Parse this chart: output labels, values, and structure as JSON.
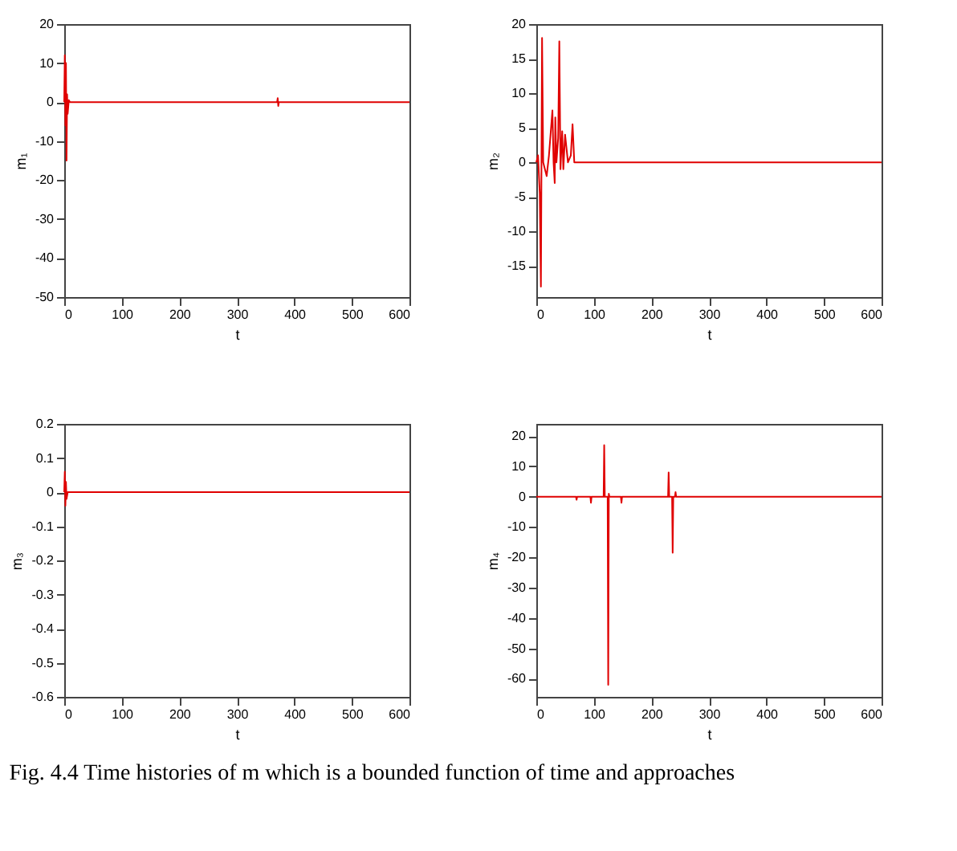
{
  "chart_data": [
    {
      "type": "line",
      "xlabel": "t",
      "ylabel": "m₁",
      "xlim": [
        0,
        600
      ],
      "xticks": [
        0,
        100,
        200,
        300,
        400,
        500,
        600
      ],
      "ylim": [
        -50,
        20
      ],
      "yticks": [
        -50,
        -40,
        -30,
        -20,
        -10,
        0,
        10,
        20
      ],
      "grid": false,
      "series": [
        {
          "color": "#e00000",
          "x": [
            0,
            1,
            2,
            3,
            4,
            5,
            6,
            8,
            10,
            370,
            371,
            372,
            373,
            600
          ],
          "values": [
            0,
            12,
            -6,
            10,
            -15,
            2,
            -3,
            0.5,
            0,
            0,
            1,
            -1,
            0,
            0
          ]
        }
      ]
    },
    {
      "type": "line",
      "xlabel": "t",
      "ylabel": "m₂",
      "xlim": [
        0,
        600
      ],
      "xticks": [
        0,
        100,
        200,
        300,
        400,
        500,
        600
      ],
      "ylim": [
        -19.5,
        20
      ],
      "yticks": [
        -15,
        -10,
        -5,
        0,
        5,
        10,
        15,
        20
      ],
      "grid": false,
      "series": [
        {
          "color": "#e00000",
          "x": [
            0,
            3,
            6,
            8,
            10,
            12,
            18,
            22,
            28,
            30,
            32,
            33,
            35,
            38,
            40,
            42,
            45,
            47,
            50,
            55,
            60,
            63,
            66,
            80,
            600
          ],
          "values": [
            0,
            1,
            -4.5,
            -18,
            18,
            0,
            -2,
            1,
            7.5,
            0,
            -3,
            6.5,
            0,
            3.5,
            17.5,
            -1,
            4.5,
            -1,
            4,
            0,
            1,
            5.5,
            0,
            0,
            0
          ]
        }
      ]
    },
    {
      "type": "line",
      "xlabel": "t",
      "ylabel": "m₃",
      "xlim": [
        0,
        600
      ],
      "xticks": [
        0,
        100,
        200,
        300,
        400,
        500,
        600
      ],
      "ylim": [
        -0.6,
        0.2
      ],
      "yticks": [
        -0.6,
        -0.5,
        -0.4,
        -0.3,
        -0.2,
        -0.1,
        0,
        0.1,
        0.2
      ],
      "grid": false,
      "series": [
        {
          "color": "#e00000",
          "x": [
            0,
            1,
            2,
            3,
            4,
            6,
            600
          ],
          "values": [
            0,
            0.06,
            -0.04,
            0.03,
            -0.02,
            0,
            0
          ]
        }
      ]
    },
    {
      "type": "line",
      "xlabel": "t",
      "ylabel": "m₄",
      "xlim": [
        0,
        600
      ],
      "xticks": [
        0,
        100,
        200,
        300,
        400,
        500,
        600
      ],
      "ylim": [
        -66,
        24
      ],
      "yticks": [
        -60,
        -50,
        -40,
        -30,
        -20,
        -10,
        0,
        10,
        20
      ],
      "grid": false,
      "annotations": [
        "Fig. 4.4 Time histories of m which is a bounded function of time and approaches"
      ],
      "series": [
        {
          "color": "#e00000",
          "x": [
            0,
            69,
            70,
            71,
            94,
            95,
            96,
            117,
            118,
            119,
            124,
            125,
            126,
            127,
            147,
            148,
            149,
            229,
            230,
            231,
            236,
            237,
            238,
            241,
            242,
            243,
            600
          ],
          "values": [
            0,
            0,
            -1,
            0,
            0,
            -2,
            0,
            0,
            17,
            0,
            0,
            -62,
            1,
            0,
            0,
            -2,
            0,
            0,
            8,
            0,
            0,
            -18.5,
            0,
            0,
            1.5,
            0,
            0
          ]
        }
      ]
    }
  ]
}
